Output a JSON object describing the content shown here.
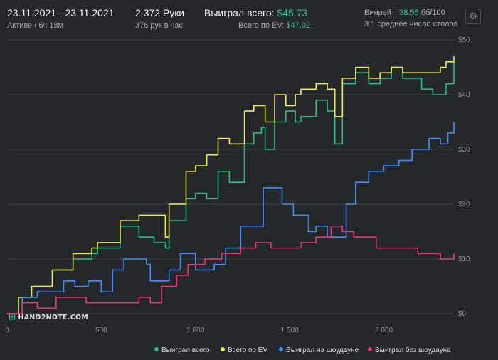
{
  "header": {
    "date_range": "23.11.2021 - 23.11.2021",
    "active_time": "Активен 6ч 18м",
    "hands": "2 372 Руки",
    "hands_per_hour": "376 рук в час",
    "won_total_label": "Выиграл всего:",
    "won_total_value": "$45.73",
    "ev_label": "Всего по EV:",
    "ev_value": "$47.02",
    "winrate_label": "Винрейт:",
    "winrate_value": "38.56",
    "winrate_unit": "бб/100",
    "avg_tables": "3.1 среднее число столов"
  },
  "logo_text": "HAND2NOTE.COM",
  "icons": {
    "settings": "gear-icon",
    "logo": "hand2note-logo-icon"
  },
  "colors": {
    "background": "#24282d",
    "grid": "#3e4349",
    "accent_green": "#35c48a",
    "won_total": "#27c07a",
    "ev_total": "#f2ea4a",
    "showdown": "#3f8ff0",
    "non_showdown": "#e8386d"
  },
  "chart_data": {
    "type": "line",
    "x_ticks": [
      0,
      500,
      1000,
      1500,
      2000
    ],
    "x_tick_labels": [
      "0",
      "500",
      "1 000",
      "1 500",
      "2 000"
    ],
    "y_ticks": [
      0,
      10,
      20,
      30,
      40,
      50
    ],
    "y_tick_labels": [
      "$0",
      "$10",
      "$20",
      "$30",
      "$40",
      "$50"
    ],
    "xlim": [
      0,
      2372
    ],
    "ylim": [
      0,
      50
    ],
    "grid": true,
    "legend_position": "bottom-right",
    "series": [
      {
        "name": "Выиграл всего",
        "key": "won_total",
        "x": [
          0,
          60,
          130,
          240,
          350,
          450,
          480,
          600,
          700,
          780,
          840,
          860,
          950,
          1000,
          1060,
          1120,
          1180,
          1260,
          1310,
          1350,
          1370,
          1420,
          1480,
          1530,
          1560,
          1640,
          1700,
          1740,
          1780,
          1850,
          1920,
          1980,
          2040,
          2100,
          2200,
          2260,
          2300,
          2330,
          2372
        ],
        "y": [
          0,
          3,
          5,
          8,
          10,
          11,
          12,
          16,
          14,
          13,
          12,
          17,
          21,
          22,
          21,
          26,
          24,
          31,
          33,
          34,
          30,
          35,
          37,
          35,
          36,
          39,
          37,
          31,
          42,
          44,
          42,
          43,
          45,
          43,
          41,
          40,
          40,
          42,
          46
        ]
      },
      {
        "name": "Всего по EV",
        "key": "ev_total",
        "x": [
          0,
          60,
          130,
          240,
          350,
          450,
          480,
          600,
          700,
          780,
          840,
          860,
          950,
          1000,
          1060,
          1120,
          1180,
          1260,
          1310,
          1350,
          1370,
          1420,
          1480,
          1530,
          1560,
          1640,
          1700,
          1740,
          1780,
          1850,
          1920,
          1980,
          2040,
          2100,
          2200,
          2260,
          2300,
          2330,
          2372
        ],
        "y": [
          0,
          3,
          5,
          8,
          11,
          12,
          13,
          17,
          18,
          18,
          14,
          20,
          26,
          27,
          29,
          32,
          31,
          37,
          38,
          38,
          35,
          40,
          38,
          40,
          41,
          42,
          41,
          36,
          43,
          45,
          43,
          44,
          45,
          44,
          44,
          44,
          45,
          46,
          47
        ]
      },
      {
        "name": "Выиграл на шоудауне",
        "key": "showdown",
        "x": [
          0,
          80,
          160,
          300,
          360,
          430,
          500,
          560,
          620,
          740,
          760,
          860,
          920,
          1000,
          1100,
          1160,
          1240,
          1360,
          1460,
          1520,
          1600,
          1640,
          1700,
          1800,
          1850,
          1920,
          2000,
          2080,
          2150,
          2240,
          2300,
          2340,
          2372
        ],
        "y": [
          0,
          3,
          4,
          6,
          5,
          6,
          4,
          8,
          10,
          9,
          6,
          8,
          11,
          8,
          9,
          12,
          16,
          23,
          20,
          18,
          15,
          16,
          14,
          20,
          24,
          26,
          27,
          28,
          30,
          32,
          31,
          33,
          35
        ]
      },
      {
        "name": "Выиграл без шоудауна",
        "key": "non_showdown",
        "x": [
          0,
          80,
          160,
          260,
          350,
          420,
          500,
          560,
          640,
          700,
          760,
          820,
          900,
          960,
          1050,
          1140,
          1240,
          1320,
          1400,
          1480,
          1560,
          1640,
          1720,
          1780,
          1840,
          1900,
          1960,
          2020,
          2100,
          2180,
          2240,
          2300,
          2372
        ],
        "y": [
          0,
          2,
          1,
          3,
          3,
          2,
          2,
          2,
          2,
          3,
          2,
          5,
          7,
          9,
          10,
          11,
          12,
          13,
          12,
          12,
          13,
          14,
          16,
          15,
          14,
          14,
          12,
          12,
          12,
          11,
          11,
          10,
          11
        ]
      }
    ]
  }
}
